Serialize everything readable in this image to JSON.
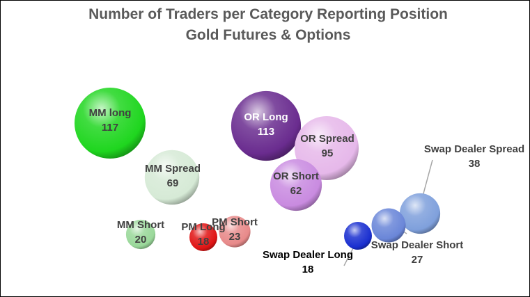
{
  "chart_data": {
    "type": "bubble",
    "title": "Number of Traders per Category Reporting Position",
    "subtitle": "Gold Futures & Options",
    "bubbles": [
      {
        "label": "MM long",
        "value": 117,
        "color": "#1fd61f"
      },
      {
        "label": "OR Long",
        "value": 113,
        "color": "#6a2c8f"
      },
      {
        "label": "OR Spread",
        "value": 95,
        "color": "#e6b8ea"
      },
      {
        "label": "MM Spread",
        "value": 69,
        "color": "#d6ead6"
      },
      {
        "label": "OR Short",
        "value": 62,
        "color": "#c98be0"
      },
      {
        "label": "Swap Dealer Spread",
        "value": 38,
        "color": "#7fa0dc"
      },
      {
        "label": "Swap Dealer Short",
        "value": 27,
        "color": "#6a86d8"
      },
      {
        "label": "PM Short",
        "value": 23,
        "color": "#e88a8a"
      },
      {
        "label": "MM Short",
        "value": 20,
        "color": "#9ad89a"
      },
      {
        "label": "Swap Dealer Long",
        "value": 18,
        "color": "#1a2fd0"
      },
      {
        "label": "PM Long",
        "value": 18,
        "color": "#e01515"
      }
    ]
  }
}
